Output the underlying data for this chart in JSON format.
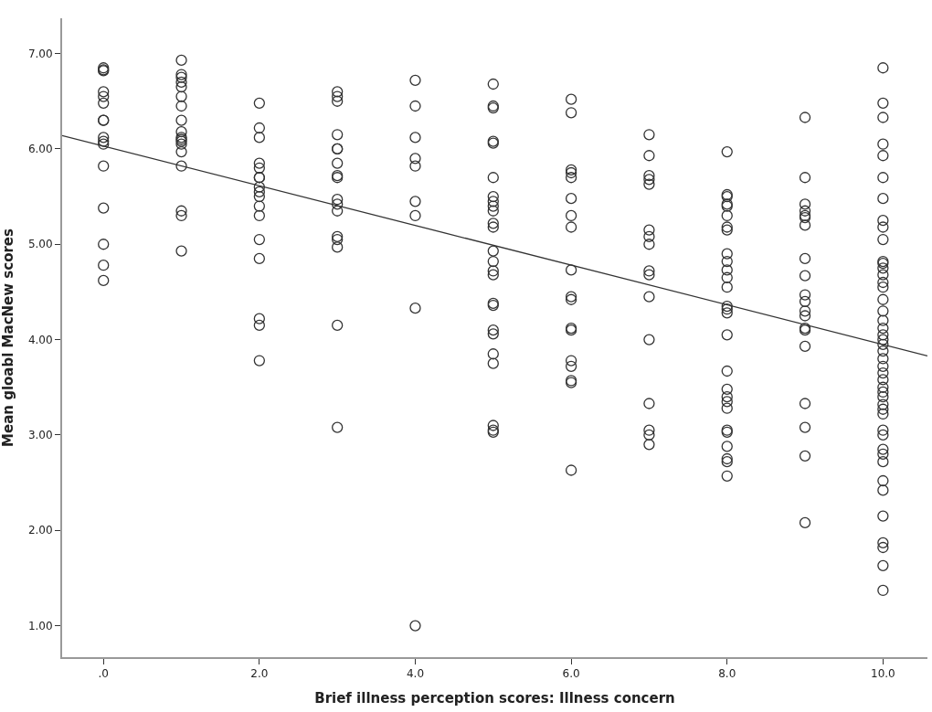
{
  "chart_data": {
    "type": "scatter",
    "xlabel": "Brief illness perception scores: Illness concern",
    "ylabel": "Mean gloabl MacNew scores",
    "xlim": [
      -0.53,
      10.57
    ],
    "ylim": [
      0.67,
      7.37
    ],
    "xticks": [
      {
        "value": 0,
        "label": ".0"
      },
      {
        "value": 2,
        "label": "2.0"
      },
      {
        "value": 4,
        "label": "4.0"
      },
      {
        "value": 6,
        "label": "6.0"
      },
      {
        "value": 8,
        "label": "8.0"
      },
      {
        "value": 10,
        "label": "10.0"
      }
    ],
    "yticks": [
      {
        "value": 1,
        "label": "1.00"
      },
      {
        "value": 2,
        "label": "2.00"
      },
      {
        "value": 3,
        "label": "3.00"
      },
      {
        "value": 4,
        "label": "4.00"
      },
      {
        "value": 5,
        "label": "5.00"
      },
      {
        "value": 6,
        "label": "6.00"
      },
      {
        "value": 7,
        "label": "7.00"
      }
    ],
    "series": [
      {
        "marker": "circle",
        "color": "#333333",
        "x": [
          0,
          0,
          0,
          0,
          0,
          0,
          0,
          0,
          0,
          0,
          0,
          0,
          0,
          0,
          0,
          0,
          1,
          1,
          1,
          1,
          1,
          1,
          1,
          1,
          1,
          1,
          1,
          1,
          1,
          1,
          1,
          1,
          1,
          1,
          2,
          2,
          2,
          2,
          2,
          2,
          2,
          2,
          2,
          2,
          2,
          2,
          2,
          2,
          2,
          2,
          2,
          3,
          3,
          3,
          3,
          3,
          3,
          3,
          3,
          3,
          3,
          3,
          3,
          3,
          3,
          3,
          3,
          3,
          4,
          4,
          4,
          4,
          4,
          4,
          4,
          4,
          4,
          5,
          5,
          5,
          5,
          5,
          5,
          5,
          5,
          5,
          5,
          5,
          5,
          5,
          5,
          5,
          5,
          5,
          5,
          5,
          5,
          5,
          5,
          5,
          5,
          5,
          6,
          6,
          6,
          6,
          6,
          6,
          6,
          6,
          6,
          6,
          6,
          6,
          6,
          6,
          6,
          6,
          6,
          6,
          7,
          7,
          7,
          7,
          7,
          7,
          7,
          7,
          7,
          7,
          7,
          7,
          7,
          7,
          7,
          7,
          8,
          8,
          8,
          8,
          8,
          8,
          8,
          8,
          8,
          8,
          8,
          8,
          8,
          8,
          8,
          8,
          8,
          8,
          8,
          8,
          8,
          8,
          8,
          8,
          8,
          8,
          8,
          8,
          9,
          9,
          9,
          9,
          9,
          9,
          9,
          9,
          9,
          9,
          9,
          9,
          9,
          9,
          9,
          9,
          9,
          9,
          9,
          9,
          10,
          10,
          10,
          10,
          10,
          10,
          10,
          10,
          10,
          10,
          10,
          10,
          10,
          10,
          10,
          10,
          10,
          10,
          10,
          10,
          10,
          10,
          10,
          10,
          10,
          10,
          10,
          10,
          10,
          10,
          10,
          10,
          10,
          10,
          10,
          10,
          10,
          10,
          10,
          10,
          10,
          10,
          10,
          10,
          10,
          10
        ],
        "values": [
          6.85,
          6.83,
          6.82,
          6.6,
          6.55,
          6.48,
          6.3,
          6.3,
          6.12,
          6.08,
          6.05,
          5.82,
          5.38,
          5.0,
          4.78,
          4.62,
          6.93,
          6.78,
          6.75,
          6.7,
          6.65,
          6.55,
          6.45,
          6.3,
          6.18,
          6.12,
          6.1,
          6.08,
          6.05,
          5.97,
          5.82,
          5.35,
          5.3,
          4.93,
          6.48,
          6.22,
          6.12,
          5.85,
          5.8,
          5.7,
          5.7,
          5.6,
          5.55,
          5.5,
          5.4,
          5.3,
          5.05,
          4.85,
          4.22,
          4.15,
          3.78,
          6.6,
          6.55,
          6.5,
          6.15,
          6.0,
          6.0,
          5.85,
          5.72,
          5.7,
          5.47,
          5.42,
          5.35,
          5.08,
          5.05,
          4.97,
          4.15,
          3.08,
          6.72,
          6.45,
          6.12,
          5.9,
          5.82,
          5.45,
          5.3,
          4.33,
          1.0,
          6.68,
          6.45,
          6.43,
          6.08,
          6.06,
          5.7,
          5.5,
          5.45,
          5.4,
          5.35,
          5.22,
          5.18,
          4.93,
          4.82,
          4.72,
          4.68,
          4.38,
          4.36,
          4.1,
          4.06,
          3.85,
          3.75,
          3.1,
          3.05,
          3.03,
          6.52,
          6.38,
          5.78,
          5.75,
          5.7,
          5.48,
          5.3,
          5.18,
          4.73,
          4.45,
          4.42,
          4.12,
          4.1,
          3.78,
          3.72,
          3.57,
          3.55,
          2.63,
          6.15,
          5.93,
          5.72,
          5.68,
          5.63,
          5.15,
          5.08,
          5.0,
          4.72,
          4.68,
          4.45,
          4.0,
          3.33,
          3.05,
          3.0,
          2.9,
          5.97,
          5.52,
          5.5,
          5.42,
          5.4,
          5.3,
          5.18,
          5.15,
          4.9,
          4.82,
          4.73,
          4.65,
          4.55,
          4.35,
          4.32,
          4.28,
          4.05,
          3.67,
          3.48,
          3.4,
          3.35,
          3.28,
          3.05,
          3.03,
          2.88,
          2.75,
          2.72,
          2.57,
          6.33,
          5.7,
          5.42,
          5.35,
          5.3,
          5.28,
          5.2,
          4.85,
          4.67,
          4.47,
          4.4,
          4.3,
          4.25,
          4.12,
          4.1,
          3.93,
          3.33,
          3.08,
          2.78,
          2.08,
          6.85,
          6.48,
          6.33,
          6.05,
          5.93,
          5.7,
          5.48,
          5.25,
          5.18,
          5.05,
          4.82,
          4.8,
          4.75,
          4.68,
          4.6,
          4.55,
          4.42,
          4.3,
          4.2,
          4.12,
          4.05,
          4.0,
          3.95,
          3.88,
          3.8,
          3.72,
          3.65,
          3.58,
          3.5,
          3.45,
          3.4,
          3.32,
          3.27,
          3.22,
          3.05,
          3.0,
          2.85,
          2.8,
          2.72,
          2.52,
          2.42,
          2.15,
          1.87,
          1.82,
          1.63,
          1.37
        ]
      },
      {
        "type": "line",
        "color": "#333333",
        "x": [
          -0.53,
          10.57
        ],
        "values": [
          6.14,
          3.83
        ]
      }
    ]
  }
}
